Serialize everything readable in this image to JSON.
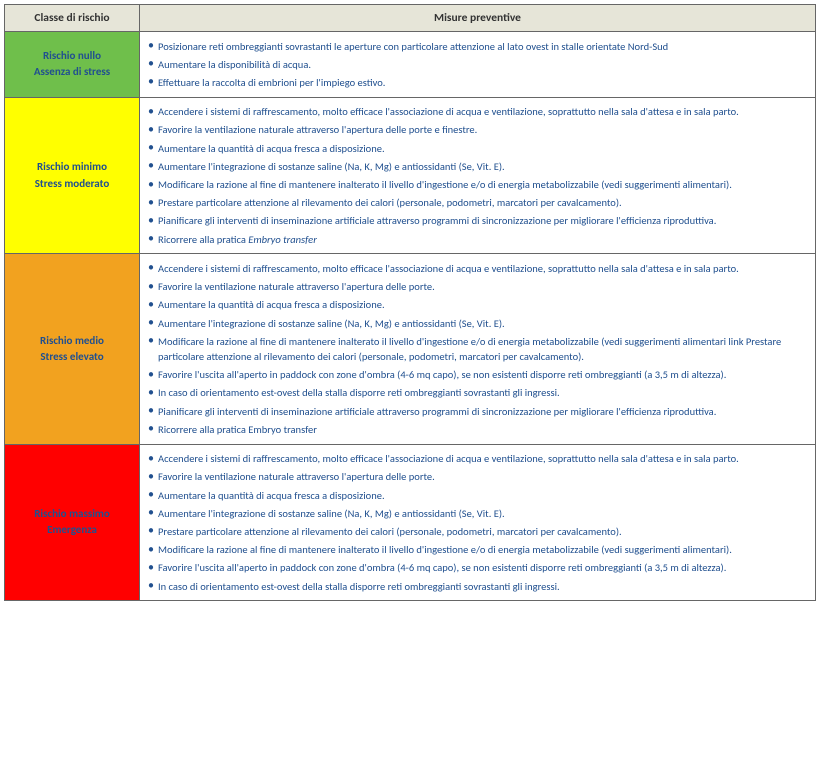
{
  "header": {
    "col_class": "Classe di rischio",
    "col_measures": "Misure preventive"
  },
  "rows": [
    {
      "bg": "#6fbf4b",
      "label_line1": "Rischio nullo",
      "label_line2": "Assenza di stress",
      "items": [
        "Posizionare reti ombreggianti sovrastanti le aperture con particolare attenzione al lato ovest in stalle orientate Nord-Sud",
        "Aumentare la disponibilità di acqua.",
        "Effettuare la raccolta di embrioni per l'impiego estivo."
      ]
    },
    {
      "bg": "#ffff00",
      "label_line1": "Rischio minimo",
      "label_line2": "Stress moderato",
      "items": [
        "Accendere i sistemi di raffrescamento, molto efficace l'associazione di acqua e ventilazione, soprattutto nella sala d'attesa e in sala parto.",
        "Favorire la ventilazione naturale attraverso l'apertura delle porte e finestre.",
        "Aumentare la quantità di acqua fresca a disposizione.",
        "Aumentare l'integrazione di sostanze saline (Na, K, Mg) e antiossidanti (Se, Vit. E).",
        "Modificare la razione al fine di mantenere inalterato il livello d'ingestione e/o di energia metabolizzabile (vedi suggerimenti alimentari).",
        "Prestare particolare attenzione al rilevamento dei calori (personale, podometri, marcatori per cavalcamento).",
        "Pianificare gli interventi di inseminazione artificiale attraverso programmi di sincronizzazione per migliorare l'efficienza riproduttiva.",
        "Ricorrere alla pratica <span class=\"ital\">Embryo transfer</span>"
      ]
    },
    {
      "bg": "#f2a21f",
      "label_line1": "Rischio medio",
      "label_line2": "Stress elevato",
      "items": [
        "Accendere i sistemi di raffrescamento, molto efficace l'associazione di acqua e ventilazione, soprattutto nella sala d'attesa e in sala parto.",
        "Favorire la ventilazione naturale attraverso l'apertura delle porte.",
        "Aumentare la quantità di acqua fresca a disposizione.",
        "Aumentare l'integrazione di sostanze saline (Na, K, Mg) e antiossidanti (Se, Vit. E).",
        "Modificare la razione al fine di mantenere inalterato il livello d'ingestione e/o di energia metabolizzabile (vedi suggerimenti alimentari link Prestare particolare attenzione al rilevamento dei calori (personale, podometri, marcatori per cavalcamento).",
        "Favorire l'uscita all'aperto in paddock con zone d'ombra (4-6 mq capo), se non esistenti disporre reti ombreggianti (a 3,5 m di altezza).",
        "In caso di orientamento est-ovest della stalla disporre reti ombreggianti sovrastanti gli ingressi.",
        "Pianificare gli interventi di inseminazione artificiale attraverso programmi di sincronizzazione per migliorare l'efficienza riproduttiva.",
        "Ricorrere alla pratica Embryo transfer"
      ]
    },
    {
      "bg": "#ff0000",
      "label_line1": "Rischio massimo",
      "label_line2": "Emergenza",
      "items": [
        "Accendere i sistemi di raffrescamento, molto efficace l'associazione di acqua e ventilazione, soprattutto nella sala d'attesa e in sala parto.",
        "Favorire la ventilazione naturale attraverso l'apertura delle porte.",
        "Aumentare la quantità di acqua fresca a disposizione.",
        "Aumentare l'integrazione di sostanze saline (Na, K, Mg) e antiossidanti (Se, Vit. E).",
        "Prestare particolare attenzione al rilevamento dei calori (personale, podometri, marcatori per cavalcamento).",
        "Modificare la razione al fine di mantenere inalterato il livello d'ingestione e/o di energia metabolizzabile (vedi suggerimenti alimentari).",
        "Favorire l'uscita all'aperto in paddock con zone d'ombra (4-6 mq capo), se non esistenti disporre reti ombreggianti (a 3,5 m di altezza).",
        "In caso di orientamento est-ovest della stalla disporre reti ombreggianti sovrastanti gli ingressi."
      ]
    }
  ]
}
